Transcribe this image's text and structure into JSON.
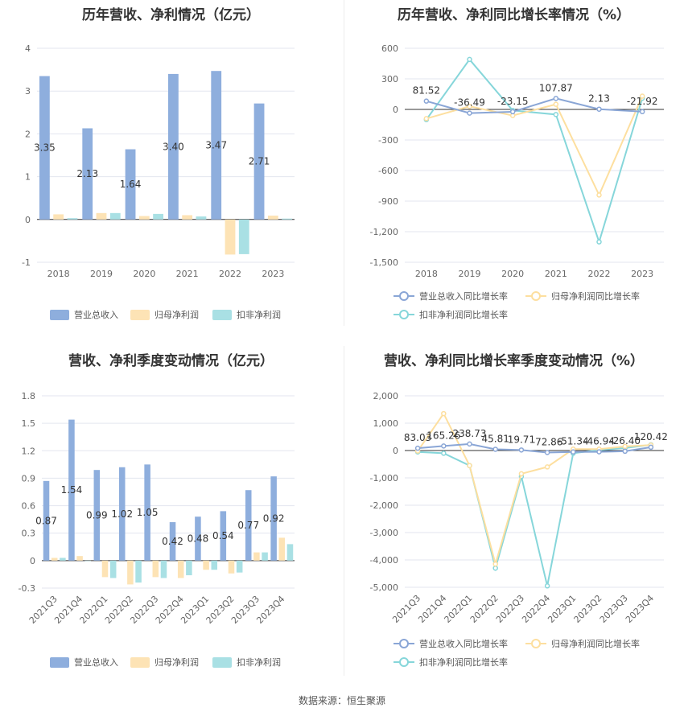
{
  "source_label": "数据来源：恒生聚源",
  "chart_data": [
    {
      "id": "annual_rev",
      "type": "bar",
      "title": "历年营收、净利情况（亿元）",
      "categories": [
        "2018",
        "2019",
        "2020",
        "2021",
        "2022",
        "2023"
      ],
      "ylim": [
        -1,
        4
      ],
      "yticks": [
        -1,
        0,
        1,
        2,
        3,
        4
      ],
      "series": [
        {
          "name": "营业总收入",
          "color": "#8eaedd",
          "values": [
            3.35,
            2.13,
            1.64,
            3.4,
            3.47,
            2.71
          ],
          "labels": [
            "3.35",
            "2.13",
            "1.64",
            "3.40",
            "3.47",
            "2.71"
          ]
        },
        {
          "name": "归母净利润",
          "color": "#fde3b5",
          "values": [
            0.12,
            0.15,
            0.08,
            0.1,
            -0.82,
            0.09
          ]
        },
        {
          "name": "扣非净利润",
          "color": "#a9e0e4",
          "values": [
            0.03,
            0.15,
            0.13,
            0.07,
            -0.81,
            0.02
          ]
        }
      ],
      "grid": true,
      "legend": "bottom"
    },
    {
      "id": "annual_growth",
      "type": "line",
      "title": "历年营收、净利同比增长率情况（%）",
      "categories": [
        "2018",
        "2019",
        "2020",
        "2021",
        "2022",
        "2023"
      ],
      "ylim": [
        -1500,
        600
      ],
      "yticks": [
        -1500,
        -1200,
        -900,
        -600,
        -300,
        0,
        300,
        600
      ],
      "ytick_labels": [
        "-1,500",
        "-1,200",
        "-900",
        "-600",
        "-300",
        "0",
        "300",
        "600"
      ],
      "series": [
        {
          "name": "营业总收入同比增长率",
          "color": "#8aa6d6",
          "values": [
            81.52,
            -36.49,
            -23.15,
            107.87,
            2.13,
            -21.92
          ],
          "labels": [
            "81.52",
            "-36.49",
            "-23.15",
            "107.87",
            "2.13",
            "-21.92"
          ]
        },
        {
          "name": "归母净利润同比增长率",
          "color": "#fddf9f",
          "values": [
            -90,
            30,
            -60,
            50,
            -840,
            130
          ]
        },
        {
          "name": "扣非净利润同比增长率",
          "color": "#86d6da",
          "values": [
            -100,
            490,
            -10,
            -50,
            -1300,
            110
          ]
        }
      ],
      "grid": true,
      "legend": "bottom"
    },
    {
      "id": "quarterly_rev",
      "type": "bar",
      "title": "营收、净利季度变动情况（亿元）",
      "categories": [
        "2021Q3",
        "2021Q4",
        "2022Q1",
        "2022Q2",
        "2022Q3",
        "2022Q4",
        "2023Q1",
        "2023Q2",
        "2023Q3",
        "2023Q4"
      ],
      "ylim": [
        -0.3,
        1.8
      ],
      "yticks": [
        -0.3,
        0,
        0.3,
        0.6,
        0.9,
        1.2,
        1.5,
        1.8
      ],
      "ytick_labels": [
        "-0.3",
        "0",
        "0.3",
        "0.6",
        "0.9",
        "1.2",
        "1.5",
        "1.8"
      ],
      "series": [
        {
          "name": "营业总收入",
          "color": "#8eaedd",
          "values": [
            0.87,
            1.54,
            0.99,
            1.02,
            1.05,
            0.42,
            0.48,
            0.54,
            0.77,
            0.92
          ],
          "labels": [
            "0.87",
            "1.54",
            "0.99",
            "1.02",
            "1.05",
            "0.42",
            "0.48",
            "0.54",
            "0.77",
            "0.92"
          ]
        },
        {
          "name": "归母净利润",
          "color": "#fde3b5",
          "values": [
            0.03,
            0.05,
            -0.18,
            -0.26,
            -0.18,
            -0.19,
            -0.1,
            -0.14,
            0.09,
            0.25
          ]
        },
        {
          "name": "扣非净利润",
          "color": "#a9e0e4",
          "values": [
            0.03,
            0.0,
            -0.19,
            -0.24,
            -0.19,
            -0.16,
            -0.1,
            -0.13,
            0.09,
            0.18
          ]
        }
      ],
      "grid": true,
      "legend": "bottom"
    },
    {
      "id": "quarterly_growth",
      "type": "line",
      "title": "营收、净利同比增长率季度变动情况（%）",
      "categories": [
        "2021Q3",
        "2021Q4",
        "2022Q1",
        "2022Q2",
        "2022Q3",
        "2022Q4",
        "2023Q1",
        "2023Q2",
        "2023Q3",
        "2023Q4"
      ],
      "ylim": [
        -5000,
        2000
      ],
      "yticks": [
        -5000,
        -4000,
        -3000,
        -2000,
        -1000,
        0,
        1000,
        2000
      ],
      "ytick_labels": [
        "-5,000",
        "-4,000",
        "-3,000",
        "-2,000",
        "-1,000",
        "0",
        "1,000",
        "2,000"
      ],
      "series": [
        {
          "name": "营业总收入同比增长率",
          "color": "#8aa6d6",
          "values": [
            83.03,
            165.26,
            238.73,
            45.81,
            19.71,
            -72.86,
            -51.34,
            -46.94,
            -26.4,
            120.42
          ],
          "labels": [
            "83.03",
            "165.26",
            "238.73",
            "45.81",
            "19.71",
            "-72.86",
            "-51.34",
            "-46.94",
            "-26.40",
            "120.42"
          ]
        },
        {
          "name": "归母净利润同比增长率",
          "color": "#fddf9f",
          "values": [
            -20,
            1350,
            -550,
            -4150,
            -850,
            -600,
            50,
            50,
            150,
            200
          ]
        },
        {
          "name": "扣非净利润同比增长率",
          "color": "#86d6da",
          "values": [
            -50,
            -100,
            -550,
            -4300,
            -950,
            -4950,
            -100,
            20,
            90,
            210
          ]
        }
      ],
      "grid": true,
      "legend": "bottom"
    }
  ]
}
